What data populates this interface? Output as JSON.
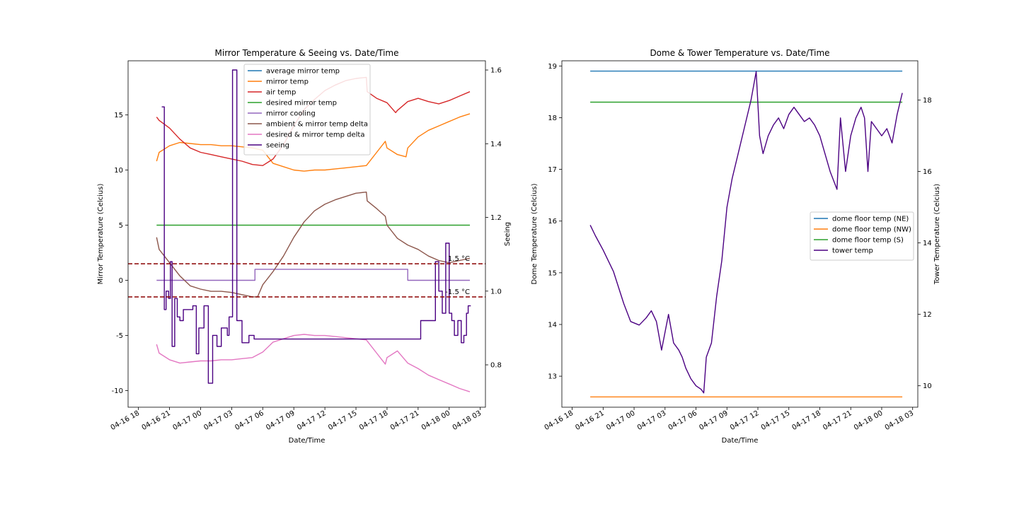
{
  "chart_data": [
    {
      "type": "line",
      "title": "Mirror Temperature & Seeing vs. Date/Time",
      "xlabel": "Date/Time",
      "ylabel": "Mirror Temperature (Celcius)",
      "y2label": "Seeing",
      "x_ticks": [
        "04-16 18",
        "04-16 21",
        "04-17 00",
        "04-17 03",
        "04-17 06",
        "04-17 09",
        "04-17 12",
        "04-17 15",
        "04-17 18",
        "04-17 21",
        "04-18 00",
        "04-18 03"
      ],
      "xlim": [
        "04-16 17:00",
        "04-18 03:30"
      ],
      "ylim": [
        -11.5,
        19.9
      ],
      "yticks": [
        -10,
        -5,
        0,
        5,
        10,
        15
      ],
      "y2lim": [
        0.685,
        1.625
      ],
      "y2ticks": [
        0.8,
        1.0,
        1.2,
        1.4,
        1.6
      ],
      "grid": false,
      "legend_position": "top-center",
      "hlines": [
        {
          "y": 1.5,
          "label": "1.5 °C",
          "color": "#8b0000",
          "style": "dashed"
        },
        {
          "y": -1.5,
          "label": "-1.5 °C",
          "color": "#8b0000",
          "style": "dashed"
        }
      ],
      "series": [
        {
          "name": "average mirror temp",
          "color": "#1f77b4",
          "axis": "left",
          "x": [],
          "values": []
        },
        {
          "name": "mirror temp",
          "color": "#ff7f0e",
          "axis": "left",
          "x": [
            "04-16 19:45",
            "04-16 20:00",
            "04-16 21:00",
            "04-16 22:00",
            "04-16 23:00",
            "04-17 00:00",
            "04-17 01:00",
            "04-17 02:00",
            "04-17 03:00",
            "04-17 04:00",
            "04-17 05:00",
            "04-17 06:00",
            "04-17 07:00",
            "04-17 08:00",
            "04-17 09:00",
            "04-17 10:00",
            "04-17 11:00",
            "04-17 12:00",
            "04-17 13:00",
            "04-17 14:00",
            "04-17 15:00",
            "04-17 16:00",
            "04-17 17:00",
            "04-17 17:50",
            "04-17 18:00",
            "04-17 19:00",
            "04-17 19:50",
            "04-17 20:00",
            "04-17 21:00",
            "04-17 22:00",
            "04-17 23:00",
            "04-18 00:00",
            "04-18 01:00",
            "04-18 02:00"
          ],
          "values": [
            10.8,
            11.6,
            12.2,
            12.5,
            12.4,
            12.3,
            12.3,
            12.2,
            12.2,
            12.1,
            12.0,
            11.8,
            10.6,
            10.3,
            10.0,
            9.9,
            10.0,
            10.0,
            10.1,
            10.2,
            10.3,
            10.4,
            11.6,
            12.6,
            12.0,
            11.4,
            11.2,
            12.0,
            13.0,
            13.6,
            14.0,
            14.4,
            14.8,
            15.1
          ]
        },
        {
          "name": "air temp",
          "color": "#d62728",
          "axis": "left",
          "x": [
            "04-16 19:45",
            "04-16 20:00",
            "04-16 21:00",
            "04-16 22:00",
            "04-16 23:00",
            "04-17 00:00",
            "04-17 01:00",
            "04-17 02:00",
            "04-17 03:00",
            "04-17 04:00",
            "04-17 05:00",
            "04-17 06:00",
            "04-17 07:00",
            "04-17 08:00",
            "04-17 09:00",
            "04-17 10:00",
            "04-17 11:00",
            "04-17 12:00",
            "04-17 13:00",
            "04-17 14:00",
            "04-17 15:00",
            "04-17 16:00",
            "04-17 16:05",
            "04-17 17:00",
            "04-17 18:00",
            "04-17 18:50",
            "04-17 19:00",
            "04-17 20:00",
            "04-17 21:00",
            "04-17 22:00",
            "04-17 23:00",
            "04-18 00:00",
            "04-18 01:00",
            "04-18 02:00"
          ],
          "values": [
            14.8,
            14.5,
            13.8,
            12.8,
            12.0,
            11.6,
            11.4,
            11.2,
            11.0,
            10.8,
            10.5,
            10.4,
            11.0,
            12.3,
            14.0,
            15.5,
            16.4,
            17.2,
            17.7,
            18.1,
            18.3,
            18.4,
            17.1,
            16.5,
            16.1,
            15.2,
            15.4,
            16.2,
            16.5,
            16.2,
            16.0,
            16.3,
            16.7,
            17.1
          ]
        },
        {
          "name": "desired mirror temp",
          "color": "#2ca02c",
          "axis": "left",
          "x": [
            "04-16 19:45",
            "04-18 02:00"
          ],
          "values": [
            5.0,
            5.0
          ]
        },
        {
          "name": "mirror cooling",
          "color": "#9467bd",
          "axis": "left",
          "x": [
            "04-16 19:45",
            "04-17 05:15",
            "04-17 05:15",
            "04-17 20:00",
            "04-17 20:00",
            "04-18 02:00"
          ],
          "values": [
            0,
            0,
            1,
            1,
            0,
            0
          ]
        },
        {
          "name": "ambient & mirror temp delta",
          "color": "#8c564b",
          "axis": "left",
          "x": [
            "04-16 19:45",
            "04-16 20:00",
            "04-16 21:00",
            "04-16 22:00",
            "04-16 23:00",
            "04-17 00:00",
            "04-17 01:00",
            "04-17 02:00",
            "04-17 03:00",
            "04-17 04:00",
            "04-17 05:00",
            "04-17 05:30",
            "04-17 06:00",
            "04-17 07:00",
            "04-17 08:00",
            "04-17 09:00",
            "04-17 10:00",
            "04-17 11:00",
            "04-17 12:00",
            "04-17 13:00",
            "04-17 14:00",
            "04-17 15:00",
            "04-17 16:00",
            "04-17 16:05",
            "04-17 17:00",
            "04-17 17:50",
            "04-17 18:00",
            "04-17 19:00",
            "04-17 20:00",
            "04-17 21:00",
            "04-17 22:00",
            "04-17 23:00",
            "04-18 00:00",
            "04-18 01:00",
            "04-18 02:00"
          ],
          "values": [
            3.9,
            2.8,
            1.6,
            0.4,
            -0.5,
            -0.8,
            -1.0,
            -1.0,
            -1.1,
            -1.3,
            -1.5,
            -1.5,
            -0.4,
            0.8,
            2.2,
            3.9,
            5.3,
            6.3,
            6.9,
            7.3,
            7.6,
            7.9,
            8.0,
            7.2,
            6.5,
            5.8,
            5.0,
            3.8,
            3.2,
            2.8,
            2.2,
            1.8,
            1.6,
            1.8,
            2.0
          ]
        },
        {
          "name": "desired & mirror temp delta",
          "color": "#e377c2",
          "axis": "left",
          "x": [
            "04-16 19:45",
            "04-16 20:00",
            "04-16 21:00",
            "04-16 22:00",
            "04-16 23:00",
            "04-17 00:00",
            "04-17 01:00",
            "04-17 02:00",
            "04-17 03:00",
            "04-17 04:00",
            "04-17 05:00",
            "04-17 06:00",
            "04-17 07:00",
            "04-17 08:00",
            "04-17 09:00",
            "04-17 10:00",
            "04-17 11:00",
            "04-17 12:00",
            "04-17 13:00",
            "04-17 14:00",
            "04-17 15:00",
            "04-17 16:00",
            "04-17 17:00",
            "04-17 17:50",
            "04-17 18:00",
            "04-17 19:00",
            "04-17 20:00",
            "04-17 21:00",
            "04-17 22:00",
            "04-17 23:00",
            "04-18 00:00",
            "04-18 01:00",
            "04-18 02:00"
          ],
          "values": [
            -5.8,
            -6.6,
            -7.2,
            -7.5,
            -7.4,
            -7.3,
            -7.3,
            -7.2,
            -7.2,
            -7.1,
            -7.0,
            -6.5,
            -5.6,
            -5.3,
            -5.0,
            -4.9,
            -5.0,
            -5.0,
            -5.1,
            -5.2,
            -5.3,
            -5.4,
            -6.6,
            -7.6,
            -7.0,
            -6.4,
            -7.5,
            -8.0,
            -8.6,
            -9.0,
            -9.4,
            -9.8,
            -10.1
          ]
        },
        {
          "name": "seeing",
          "color": "#4b0082",
          "axis": "right",
          "step": true,
          "x": [
            "04-16 20:15",
            "04-16 20:30",
            "04-16 20:40",
            "04-16 20:55",
            "04-16 21:05",
            "04-16 21:15",
            "04-16 21:30",
            "04-16 21:45",
            "04-16 22:00",
            "04-16 22:20",
            "04-16 22:45",
            "04-16 23:15",
            "04-16 23:35",
            "04-16 23:50",
            "04-17 00:20",
            "04-17 00:45",
            "04-17 01:10",
            "04-17 01:35",
            "04-17 02:00",
            "04-17 02:20",
            "04-17 02:35",
            "04-17 02:45",
            "04-17 03:05",
            "04-17 03:30",
            "04-17 04:00",
            "04-17 04:20",
            "04-17 04:40",
            "04-17 04:55",
            "04-17 05:10",
            "04-17 21:15",
            "04-17 22:40",
            "04-17 23:00",
            "04-17 23:20",
            "04-17 23:40",
            "04-18 00:00",
            "04-18 00:15",
            "04-18 00:30",
            "04-18 00:50",
            "04-18 01:10",
            "04-18 01:25",
            "04-18 01:40",
            "04-18 01:50",
            "04-18 02:05"
          ],
          "values": [
            1.5,
            0.95,
            1.0,
            0.98,
            1.08,
            0.85,
            0.98,
            0.93,
            0.92,
            0.95,
            0.95,
            0.96,
            0.83,
            0.9,
            0.96,
            0.75,
            0.88,
            0.85,
            0.9,
            0.9,
            0.88,
            0.93,
            1.6,
            0.92,
            0.86,
            0.86,
            0.88,
            0.88,
            0.87,
            0.92,
            1.08,
            1.0,
            0.94,
            1.13,
            0.94,
            0.92,
            0.88,
            0.92,
            0.86,
            0.88,
            0.94,
            0.96,
            0.96
          ]
        }
      ]
    },
    {
      "type": "line",
      "title": "Dome & Tower Temperature vs. Date/Time",
      "xlabel": "Date/Time",
      "ylabel": "Dome Temperature (Celcius)",
      "y2label": "Tower Temperature (Celcius)",
      "x_ticks": [
        "04-16 18",
        "04-16 21",
        "04-17 00",
        "04-17 03",
        "04-17 06",
        "04-17 09",
        "04-17 12",
        "04-17 15",
        "04-17 18",
        "04-17 21",
        "04-18 00",
        "04-18 03"
      ],
      "xlim": [
        "04-16 17:00",
        "04-18 03:30"
      ],
      "ylim": [
        12.4,
        19.1
      ],
      "yticks": [
        13,
        14,
        15,
        16,
        17,
        18,
        19
      ],
      "y2lim": [
        9.4,
        19.1
      ],
      "y2ticks": [
        10,
        12,
        14,
        16,
        18
      ],
      "grid": false,
      "legend_position": "center-right",
      "series": [
        {
          "name": "dome floor temp (NE)",
          "color": "#1f77b4",
          "axis": "left",
          "x": [
            "04-16 19:45",
            "04-18 02:00"
          ],
          "values": [
            18.9,
            18.9
          ]
        },
        {
          "name": "dome floor temp (NW)",
          "color": "#ff7f0e",
          "axis": "left",
          "x": [
            "04-16 19:45",
            "04-18 02:00"
          ],
          "values": [
            12.6,
            12.6
          ]
        },
        {
          "name": "dome floor temp (S)",
          "color": "#2ca02c",
          "axis": "left",
          "x": [
            "04-16 19:45",
            "04-18 02:00"
          ],
          "values": [
            18.3,
            18.3
          ]
        },
        {
          "name": "tower temp",
          "color": "#4b0082",
          "axis": "right",
          "x": [
            "04-16 19:45",
            "04-16 20:15",
            "04-16 21:00",
            "04-16 22:00",
            "04-16 23:00",
            "04-16 23:40",
            "04-17 00:30",
            "04-17 01:10",
            "04-17 01:40",
            "04-17 02:10",
            "04-17 02:40",
            "04-17 03:00",
            "04-17 03:20",
            "04-17 03:50",
            "04-17 04:20",
            "04-17 04:40",
            "04-17 05:00",
            "04-17 05:30",
            "04-17 06:00",
            "04-17 06:30",
            "04-17 06:45",
            "04-17 07:00",
            "04-17 07:30",
            "04-17 08:00",
            "04-17 08:30",
            "04-17 09:00",
            "04-17 09:30",
            "04-17 10:00",
            "04-17 10:40",
            "04-17 11:20",
            "04-17 11:50",
            "04-17 12:10",
            "04-17 12:30",
            "04-17 13:00",
            "04-17 13:30",
            "04-17 14:00",
            "04-17 14:30",
            "04-17 15:00",
            "04-17 15:30",
            "04-17 16:00",
            "04-17 16:30",
            "04-17 17:00",
            "04-17 17:30",
            "04-17 18:00",
            "04-17 18:30",
            "04-17 19:00",
            "04-17 19:40",
            "04-17 20:00",
            "04-17 20:30",
            "04-17 21:00",
            "04-17 21:30",
            "04-17 22:00",
            "04-17 22:20",
            "04-17 22:40",
            "04-17 23:00",
            "04-17 23:30",
            "04-18 00:00",
            "04-18 00:30",
            "04-18 01:00",
            "04-18 01:30",
            "04-18 02:00"
          ],
          "values": [
            14.5,
            14.2,
            13.8,
            13.2,
            12.3,
            11.8,
            11.7,
            11.9,
            12.1,
            11.8,
            11.0,
            11.5,
            12.0,
            11.2,
            11.0,
            10.8,
            10.5,
            10.2,
            10.0,
            9.9,
            9.8,
            10.8,
            11.2,
            12.5,
            13.5,
            15.0,
            15.8,
            16.4,
            17.2,
            18.0,
            18.8,
            17.0,
            16.5,
            17.0,
            17.3,
            17.5,
            17.2,
            17.6,
            17.8,
            17.6,
            17.4,
            17.5,
            17.3,
            17.0,
            16.5,
            16.0,
            15.5,
            17.5,
            16.0,
            17.0,
            17.5,
            17.8,
            17.5,
            16.0,
            17.4,
            17.2,
            17.0,
            17.2,
            16.8,
            17.6,
            18.2
          ]
        }
      ]
    }
  ]
}
